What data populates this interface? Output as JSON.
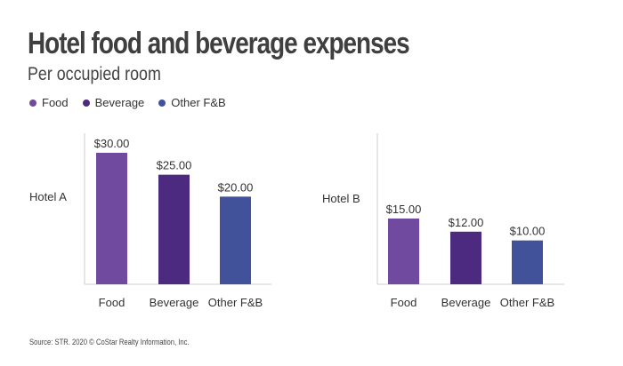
{
  "header": {
    "title": "Hotel food and beverage expenses",
    "subtitle": "Per occupied room"
  },
  "legend": [
    {
      "label": "Food",
      "color": "#6f4a9e"
    },
    {
      "label": "Beverage",
      "color": "#4b2a7f"
    },
    {
      "label": "Other F&B",
      "color": "#41529a"
    }
  ],
  "chart_data": [
    {
      "type": "bar",
      "panel_label": "Hotel A",
      "categories": [
        "Food",
        "Beverage",
        "Other F&B"
      ],
      "values": [
        30,
        25,
        20
      ],
      "value_labels": [
        "$30.00",
        "$25.00",
        "$20.00"
      ],
      "colors": [
        "#6f4a9e",
        "#4b2a7f",
        "#41529a"
      ],
      "ylim": [
        0,
        30
      ]
    },
    {
      "type": "bar",
      "panel_label": "Hotel B",
      "categories": [
        "Food",
        "Beverage",
        "Other F&B"
      ],
      "values": [
        15,
        12,
        10
      ],
      "value_labels": [
        "$15.00",
        "$12.00",
        "$10.00"
      ],
      "colors": [
        "#6f4a9e",
        "#4b2a7f",
        "#41529a"
      ],
      "ylim": [
        0,
        30
      ]
    }
  ],
  "footer": {
    "source": "Source: STR. 2020 © CoStar Realty Information, Inc."
  }
}
